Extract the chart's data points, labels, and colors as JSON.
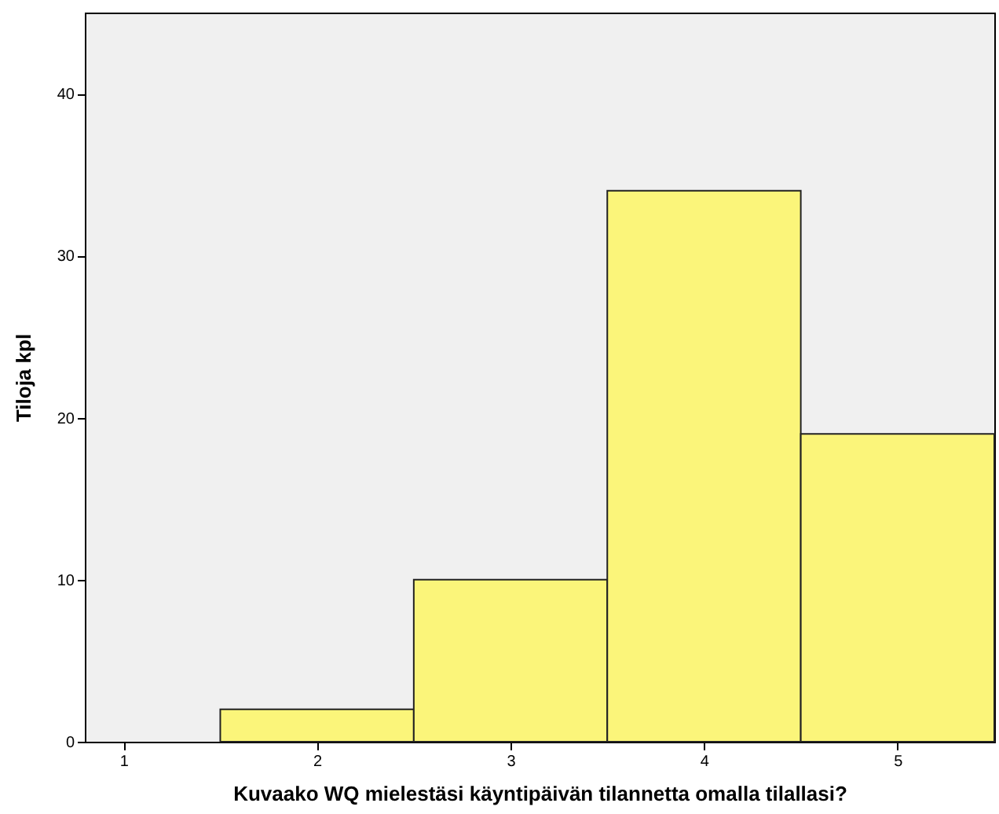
{
  "chart_data": {
    "type": "histogram",
    "xlabel": "Kuvaako WQ mielestäsi käyntipäivän tilannetta omalla tilallasi?",
    "ylabel": "Tiloja kpl",
    "bins": [
      1.5,
      2.5,
      3.5,
      4.5,
      5.5
    ],
    "values": [
      2,
      10,
      34,
      19
    ],
    "color": "#fbf57a",
    "xlim": [
      0.8,
      5.5
    ],
    "xticks": [
      1,
      2,
      3,
      4,
      5
    ],
    "ylim": [
      0,
      45
    ],
    "yticks": [
      0,
      10,
      20,
      30,
      40
    ],
    "grid": false
  }
}
